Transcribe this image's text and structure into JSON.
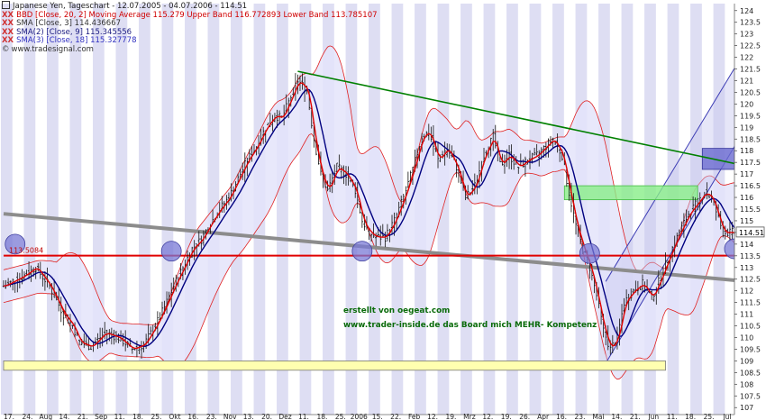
{
  "header": {
    "title": "Japanese Yen, Tageschart - 12.07.2005 - 04.07.2006 - 114.51",
    "bbd": "BBD [Close, 20, 2] Moving Average 115.279 Upper Band 116.772893 Lower Band 113.785107",
    "sma3": "SMA [Close, 3] 114.436667",
    "sma9": "SMA(2) [Close, 9] 115.345556",
    "sma18": "SMA(3) [Close, 18] 115.327778",
    "site": "www.tradesignal.com",
    "xx": "XX"
  },
  "watermark": {
    "line1": "erstellt von oegeat.com",
    "line2": "www.trader-inside.de das Board mich MEHR- Kompetenz"
  },
  "price_tag": "114.51",
  "level_tag": "113.5084",
  "colors": {
    "stripe": "#dedef3",
    "band_fill": "#e4e4fa",
    "band_line": "#e02020",
    "sma3": "#e00000",
    "sma9": "#000080",
    "trend_green": "#008000",
    "support_red": "#e00000",
    "trend_gray": "#8c8c8c",
    "channel": "#3c3cb4",
    "circle": "#7a7ad6",
    "zone_green": "#88ee88",
    "zone_yellow": "#ffffb0"
  },
  "chart_data": {
    "type": "candlestick",
    "instrument": "Japanese Yen",
    "period": "12.07.2005 - 04.07.2006",
    "ylim": [
      106.7,
      124.3
    ],
    "y_ticks": [
      107,
      107.5,
      108,
      108.5,
      109,
      109.5,
      110,
      110.5,
      111,
      111.5,
      112,
      112.5,
      113,
      113.5,
      114,
      114.5,
      115,
      115.5,
      116,
      116.5,
      117,
      117.5,
      118,
      118.5,
      119,
      119.5,
      120,
      120.5,
      121,
      121.5,
      122,
      122.5,
      123,
      123.5,
      124
    ],
    "x_ticks": [
      "17.",
      "24.",
      "Aug",
      "14.",
      "21.",
      "Sep",
      "11.",
      "18.",
      "25.",
      "Okt",
      "16.",
      "23.",
      "Nov",
      "13.",
      "20.",
      "Dez",
      "11.",
      "18.",
      "25.",
      "2006",
      "15.",
      "22.",
      "Feb",
      "12.",
      "19.",
      "Mrz",
      "12.",
      "19.",
      "26.",
      "Apr",
      "16.",
      "23.",
      "Mai",
      "14.",
      "21.",
      "Jun",
      "11.",
      "18.",
      "25.",
      "Jul"
    ],
    "close_path": [
      {
        "x": 0,
        "y": 112.2
      },
      {
        "x": 8,
        "y": 112.6
      },
      {
        "x": 14,
        "y": 113.0
      },
      {
        "x": 20,
        "y": 112.2
      },
      {
        "x": 26,
        "y": 111.0
      },
      {
        "x": 30,
        "y": 110.5
      },
      {
        "x": 33,
        "y": 109.8
      },
      {
        "x": 38,
        "y": 109.6
      },
      {
        "x": 44,
        "y": 110.2
      },
      {
        "x": 50,
        "y": 110.0
      },
      {
        "x": 56,
        "y": 109.5
      },
      {
        "x": 61,
        "y": 109.7
      },
      {
        "x": 66,
        "y": 110.5
      },
      {
        "x": 70,
        "y": 111.3
      },
      {
        "x": 74,
        "y": 112.2
      },
      {
        "x": 78,
        "y": 113.0
      },
      {
        "x": 82,
        "y": 113.8
      },
      {
        "x": 86,
        "y": 114.2
      },
      {
        "x": 90,
        "y": 114.9
      },
      {
        "x": 94,
        "y": 115.5
      },
      {
        "x": 98,
        "y": 116.0
      },
      {
        "x": 102,
        "y": 116.8
      },
      {
        "x": 106,
        "y": 117.6
      },
      {
        "x": 110,
        "y": 118.2
      },
      {
        "x": 114,
        "y": 119.0
      },
      {
        "x": 118,
        "y": 119.5
      },
      {
        "x": 121,
        "y": 119.4
      },
      {
        "x": 125,
        "y": 120.3
      },
      {
        "x": 128,
        "y": 121.0
      },
      {
        "x": 132,
        "y": 120.6
      },
      {
        "x": 135,
        "y": 118.5
      },
      {
        "x": 138,
        "y": 117.0
      },
      {
        "x": 141,
        "y": 116.3
      },
      {
        "x": 145,
        "y": 117.3
      },
      {
        "x": 149,
        "y": 117.0
      },
      {
        "x": 153,
        "y": 116.3
      },
      {
        "x": 156,
        "y": 115.0
      },
      {
        "x": 159,
        "y": 114.5
      },
      {
        "x": 162,
        "y": 114.3
      },
      {
        "x": 166,
        "y": 114.3
      },
      {
        "x": 170,
        "y": 115.0
      },
      {
        "x": 174,
        "y": 116.0
      },
      {
        "x": 178,
        "y": 117.2
      },
      {
        "x": 182,
        "y": 118.6
      },
      {
        "x": 185,
        "y": 118.8
      },
      {
        "x": 189,
        "y": 117.6
      },
      {
        "x": 193,
        "y": 118.1
      },
      {
        "x": 197,
        "y": 117.3
      },
      {
        "x": 201,
        "y": 116.0
      },
      {
        "x": 205,
        "y": 116.5
      },
      {
        "x": 209,
        "y": 117.8
      },
      {
        "x": 213,
        "y": 118.6
      },
      {
        "x": 216,
        "y": 117.4
      },
      {
        "x": 220,
        "y": 117.8
      },
      {
        "x": 224,
        "y": 117.3
      },
      {
        "x": 228,
        "y": 117.6
      },
      {
        "x": 232,
        "y": 117.8
      },
      {
        "x": 236,
        "y": 118.2
      },
      {
        "x": 239,
        "y": 118.5
      },
      {
        "x": 243,
        "y": 117.8
      },
      {
        "x": 246,
        "y": 116.2
      },
      {
        "x": 249,
        "y": 114.8
      },
      {
        "x": 252,
        "y": 113.8
      },
      {
        "x": 255,
        "y": 113.0
      },
      {
        "x": 258,
        "y": 111.8
      },
      {
        "x": 261,
        "y": 110.3
      },
      {
        "x": 264,
        "y": 109.5
      },
      {
        "x": 267,
        "y": 110.0
      },
      {
        "x": 270,
        "y": 111.5
      },
      {
        "x": 274,
        "y": 112.0
      },
      {
        "x": 278,
        "y": 112.3
      },
      {
        "x": 282,
        "y": 111.7
      },
      {
        "x": 286,
        "y": 112.6
      },
      {
        "x": 290,
        "y": 113.6
      },
      {
        "x": 294,
        "y": 114.5
      },
      {
        "x": 298,
        "y": 115.3
      },
      {
        "x": 302,
        "y": 115.8
      },
      {
        "x": 305,
        "y": 116.2
      },
      {
        "x": 308,
        "y": 116.0
      },
      {
        "x": 311,
        "y": 115.1
      },
      {
        "x": 313,
        "y": 114.5
      }
    ],
    "annotations": {
      "support_level": 113.5084,
      "trend_green": [
        {
          "x": 128,
          "y": 121.4
        },
        {
          "x": 335,
          "y": 117.1
        }
      ],
      "trend_gray": [
        {
          "x": 0,
          "y": 115.3
        },
        {
          "x": 335,
          "y": 112.3
        }
      ],
      "channel_lower": [
        {
          "x": 262,
          "y": 108.9
        },
        {
          "x": 335,
          "y": 121.0
        }
      ],
      "channel_upper": [
        {
          "x": 262,
          "y": 112.4
        },
        {
          "x": 335,
          "y": 124.3
        }
      ],
      "zone_green": {
        "x": [
          244,
          302
        ],
        "y": [
          115.9,
          116.5
        ]
      },
      "zone_yellow": {
        "x": [
          0,
          288
        ],
        "y": [
          108.6,
          109.0
        ]
      },
      "box_blue": {
        "x": [
          304,
          318
        ],
        "y": [
          117.2,
          118.1
        ]
      },
      "circles": [
        {
          "x": 5,
          "y": 114.0
        },
        {
          "x": 73,
          "y": 113.7
        },
        {
          "x": 156,
          "y": 113.7
        },
        {
          "x": 255,
          "y": 113.6
        },
        {
          "x": 318,
          "y": 113.8
        }
      ]
    }
  }
}
